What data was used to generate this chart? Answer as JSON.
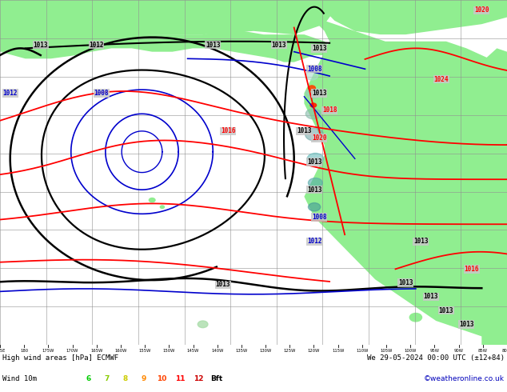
{
  "title_left": "High wind areas [hPa] ECMWF",
  "title_right": "We 29-05-2024 00:00 UTC (±12+84)",
  "label_left": "Wind 10m",
  "legend_values": [
    "6",
    "7",
    "8",
    "9",
    "10",
    "11",
    "12",
    "Bft"
  ],
  "legend_colors": [
    "#00cc00",
    "#88cc00",
    "#cccc00",
    "#ff8800",
    "#ff4400",
    "#ff0000",
    "#cc0000",
    "#000000"
  ],
  "credit": "©weatheronline.co.uk",
  "credit_color": "#0000bb",
  "bg_color": "#c8c8c8",
  "land_color": "#90ee90",
  "isobar_black": "#000000",
  "isobar_blue": "#0000cc",
  "isobar_red": "#ff0000",
  "grid_color": "#909090",
  "figsize": [
    6.34,
    4.9
  ],
  "dpi": 100
}
